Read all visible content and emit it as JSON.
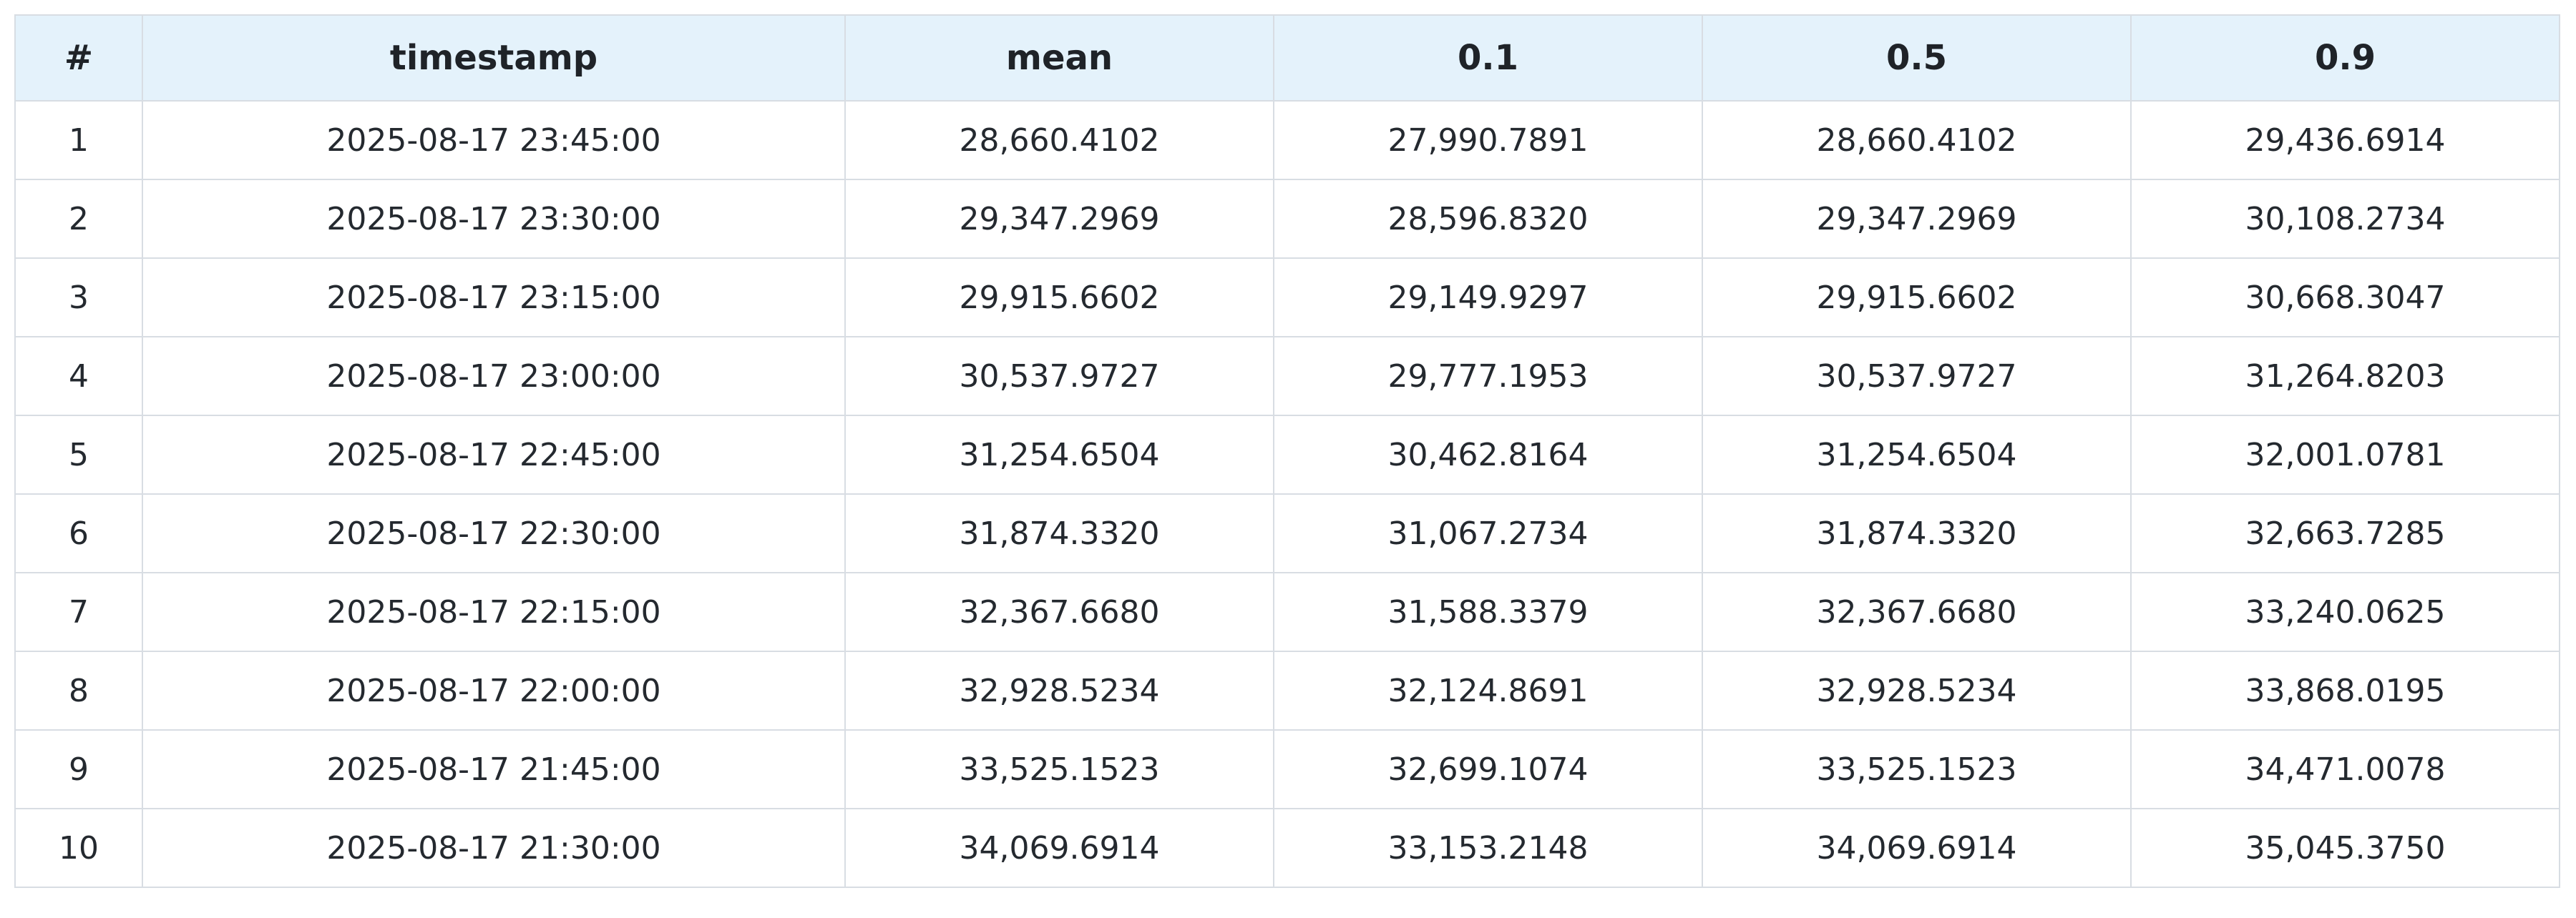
{
  "table": {
    "headers": [
      "#",
      "timestamp",
      "mean",
      "0.1",
      "0.5",
      "0.9"
    ],
    "rows": [
      [
        "1",
        "2025-08-17 23:45:00",
        "28,660.4102",
        "27,990.7891",
        "28,660.4102",
        "29,436.6914"
      ],
      [
        "2",
        "2025-08-17 23:30:00",
        "29,347.2969",
        "28,596.8320",
        "29,347.2969",
        "30,108.2734"
      ],
      [
        "3",
        "2025-08-17 23:15:00",
        "29,915.6602",
        "29,149.9297",
        "29,915.6602",
        "30,668.3047"
      ],
      [
        "4",
        "2025-08-17 23:00:00",
        "30,537.9727",
        "29,777.1953",
        "30,537.9727",
        "31,264.8203"
      ],
      [
        "5",
        "2025-08-17 22:45:00",
        "31,254.6504",
        "30,462.8164",
        "31,254.6504",
        "32,001.0781"
      ],
      [
        "6",
        "2025-08-17 22:30:00",
        "31,874.3320",
        "31,067.2734",
        "31,874.3320",
        "32,663.7285"
      ],
      [
        "7",
        "2025-08-17 22:15:00",
        "32,367.6680",
        "31,588.3379",
        "32,367.6680",
        "33,240.0625"
      ],
      [
        "8",
        "2025-08-17 22:00:00",
        "32,928.5234",
        "32,124.8691",
        "32,928.5234",
        "33,868.0195"
      ],
      [
        "9",
        "2025-08-17 21:45:00",
        "33,525.1523",
        "32,699.1074",
        "33,525.1523",
        "34,471.0078"
      ],
      [
        "10",
        "2025-08-17 21:30:00",
        "34,069.6914",
        "33,153.2148",
        "34,069.6914",
        "35,045.3750"
      ]
    ]
  }
}
